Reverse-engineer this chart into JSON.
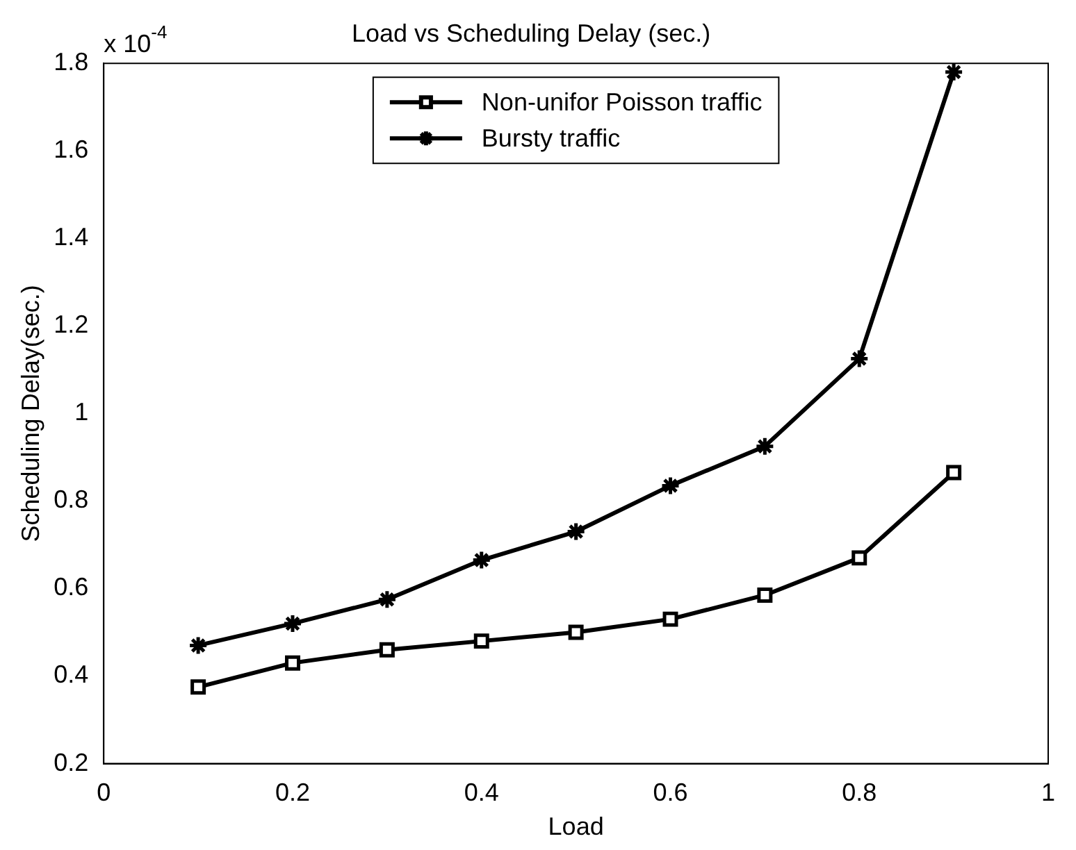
{
  "chart_data": {
    "type": "line",
    "title": "Load vs Scheduling Delay (sec.)",
    "xlabel": "Load",
    "ylabel": "Scheduling Delay(sec.)",
    "annotations": [
      "x 10$^{-4}$"
    ],
    "x": [
      0.1,
      0.2,
      0.3,
      0.4,
      0.5,
      0.6,
      0.7,
      0.8,
      0.9
    ],
    "series": [
      {
        "name": "Non-unifor Poisson traffic",
        "color": "#000000",
        "marker": "square",
        "values": [
          0.375,
          0.43,
          0.46,
          0.48,
          0.5,
          0.53,
          0.585,
          0.67,
          0.865
        ]
      },
      {
        "name": "Bursty traffic",
        "color": "#000000",
        "marker": "cross",
        "values": [
          0.47,
          0.52,
          0.575,
          0.665,
          0.73,
          0.835,
          0.925,
          1.125,
          1.78
        ]
      }
    ],
    "xlim": [
      0,
      1
    ],
    "xticks": [
      0,
      0.2,
      0.4,
      0.6,
      0.8,
      1
    ],
    "ylim": [
      0.2,
      1.8
    ],
    "yticks": [
      0.2,
      0.4,
      0.6,
      0.8,
      1,
      1.2,
      1.4,
      1.6,
      1.8
    ],
    "legend": "top",
    "line_style": "solid"
  }
}
